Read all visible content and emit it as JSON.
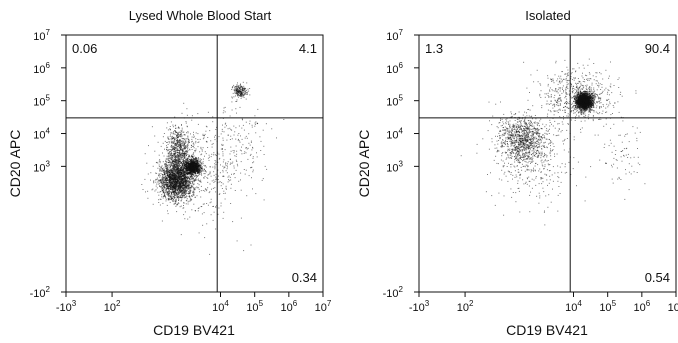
{
  "chart_data": [
    {
      "type": "scatter",
      "title": "Lysed Whole Blood Start",
      "xlabel": "CD19 BV421",
      "ylabel": "CD20 APC",
      "x_scale": "biexponential",
      "y_scale": "biexponential",
      "xlim": [
        -1000,
        10000000
      ],
      "ylim": [
        -100,
        10000000
      ],
      "grid": false,
      "gate": {
        "x": 8000,
        "y": 30000
      },
      "x_ticks": [
        {
          "value": -1000,
          "base": "-10",
          "exp": "3"
        },
        {
          "value": 100,
          "base": "10",
          "exp": "2"
        },
        {
          "value": 10000,
          "base": "10",
          "exp": "4"
        },
        {
          "value": 100000,
          "base": "10",
          "exp": "5"
        },
        {
          "value": 1000000,
          "base": "10",
          "exp": "6"
        },
        {
          "value": 10000000,
          "base": "10",
          "exp": "7"
        }
      ],
      "y_ticks": [
        {
          "value": -100,
          "base": "-10",
          "exp": "2"
        },
        {
          "value": 1000,
          "base": "10",
          "exp": "3"
        },
        {
          "value": 10000,
          "base": "10",
          "exp": "4"
        },
        {
          "value": 100000,
          "base": "10",
          "exp": "5"
        },
        {
          "value": 1000000,
          "base": "10",
          "exp": "6"
        },
        {
          "value": 10000000,
          "base": "10",
          "exp": "7"
        }
      ],
      "quadrants": {
        "top_left": "0.06",
        "top_right": "4.1",
        "bottom_left": "",
        "bottom_right": "0.34"
      },
      "populations": [
        {
          "x": 500,
          "y": 400,
          "n": 2200,
          "sx": 0.25,
          "sy": 0.3
        },
        {
          "x": 1500,
          "y": 1000,
          "n": 1200,
          "sx": 0.12,
          "sy": 0.12
        },
        {
          "x": 600,
          "y": 3500,
          "n": 600,
          "sx": 0.18,
          "sy": 0.35
        },
        {
          "x": 35000,
          "y": 200000,
          "n": 220,
          "sx": 0.1,
          "sy": 0.1
        },
        {
          "x": 3000,
          "y": 800,
          "n": 450,
          "sx": 0.7,
          "sy": 0.8
        },
        {
          "x": 30000,
          "y": 5000,
          "n": 120,
          "sx": 0.5,
          "sy": 0.6
        }
      ]
    },
    {
      "type": "scatter",
      "title": "Isolated",
      "xlabel": "CD19 BV421",
      "ylabel": "CD20 APC",
      "x_scale": "biexponential",
      "y_scale": "biexponential",
      "xlim": [
        -1000,
        10000000
      ],
      "ylim": [
        -100,
        10000000
      ],
      "grid": false,
      "gate": {
        "x": 8000,
        "y": 30000
      },
      "x_ticks": [
        {
          "value": -1000,
          "base": "-10",
          "exp": "3"
        },
        {
          "value": 100,
          "base": "10",
          "exp": "2"
        },
        {
          "value": 10000,
          "base": "10",
          "exp": "4"
        },
        {
          "value": 100000,
          "base": "10",
          "exp": "5"
        },
        {
          "value": 1000000,
          "base": "10",
          "exp": "6"
        },
        {
          "value": 10000000,
          "base": "10",
          "exp": "7"
        }
      ],
      "y_ticks": [
        {
          "value": -100,
          "base": "-10",
          "exp": "2"
        },
        {
          "value": 1000,
          "base": "10",
          "exp": "3"
        },
        {
          "value": 10000,
          "base": "10",
          "exp": "4"
        },
        {
          "value": 100000,
          "base": "10",
          "exp": "5"
        },
        {
          "value": 1000000,
          "base": "10",
          "exp": "6"
        },
        {
          "value": 10000000,
          "base": "10",
          "exp": "7"
        }
      ],
      "quadrants": {
        "top_left": "1.3",
        "top_right": "90.4",
        "bottom_left": "",
        "bottom_right": "0.54"
      },
      "populations": [
        {
          "x": 20000,
          "y": 100000,
          "n": 2200,
          "sx": 0.12,
          "sy": 0.12
        },
        {
          "x": 12000,
          "y": 150000,
          "n": 600,
          "sx": 0.55,
          "sy": 0.45
        },
        {
          "x": 300,
          "y": 7000,
          "n": 900,
          "sx": 0.35,
          "sy": 0.35
        },
        {
          "x": 600,
          "y": 2000,
          "n": 400,
          "sx": 0.6,
          "sy": 0.7
        },
        {
          "x": 300000,
          "y": 2500,
          "n": 70,
          "sx": 0.3,
          "sy": 0.5
        }
      ]
    }
  ]
}
